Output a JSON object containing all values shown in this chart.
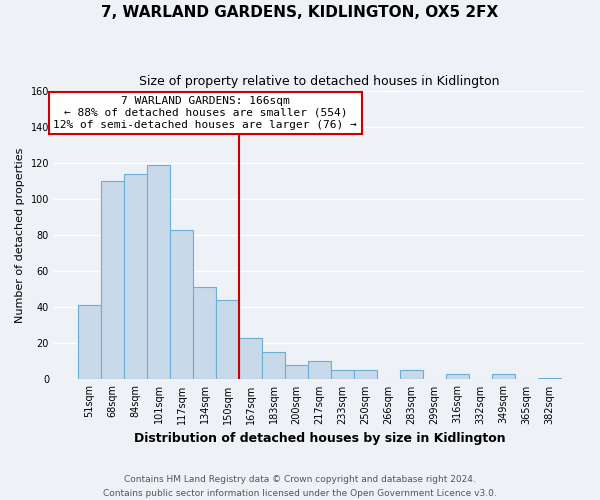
{
  "title": "7, WARLAND GARDENS, KIDLINGTON, OX5 2FX",
  "subtitle": "Size of property relative to detached houses in Kidlington",
  "xlabel": "Distribution of detached houses by size in Kidlington",
  "ylabel": "Number of detached properties",
  "bar_labels": [
    "51sqm",
    "68sqm",
    "84sqm",
    "101sqm",
    "117sqm",
    "134sqm",
    "150sqm",
    "167sqm",
    "183sqm",
    "200sqm",
    "217sqm",
    "233sqm",
    "250sqm",
    "266sqm",
    "283sqm",
    "299sqm",
    "316sqm",
    "332sqm",
    "349sqm",
    "365sqm",
    "382sqm"
  ],
  "bar_values": [
    41,
    110,
    114,
    119,
    83,
    51,
    44,
    23,
    15,
    8,
    10,
    5,
    5,
    0,
    5,
    0,
    3,
    0,
    3,
    0,
    1
  ],
  "bar_color": "#c8d9ea",
  "bar_edge_color": "#6aafd6",
  "reference_line_index": 7,
  "ylim": [
    0,
    160
  ],
  "annotation_title": "7 WARLAND GARDENS: 166sqm",
  "annotation_line1": "← 88% of detached houses are smaller (554)",
  "annotation_line2": "12% of semi-detached houses are larger (76) →",
  "annotation_box_color": "#ffffff",
  "annotation_box_edge": "#cc0000",
  "reference_line_color": "#cc0000",
  "footer1": "Contains HM Land Registry data © Crown copyright and database right 2024.",
  "footer2": "Contains public sector information licensed under the Open Government Licence v3.0.",
  "background_color": "#eef2f7",
  "grid_color": "#ffffff",
  "title_fontsize": 11,
  "subtitle_fontsize": 9,
  "xlabel_fontsize": 9,
  "ylabel_fontsize": 8,
  "tick_fontsize": 7,
  "footer_fontsize": 6.5
}
